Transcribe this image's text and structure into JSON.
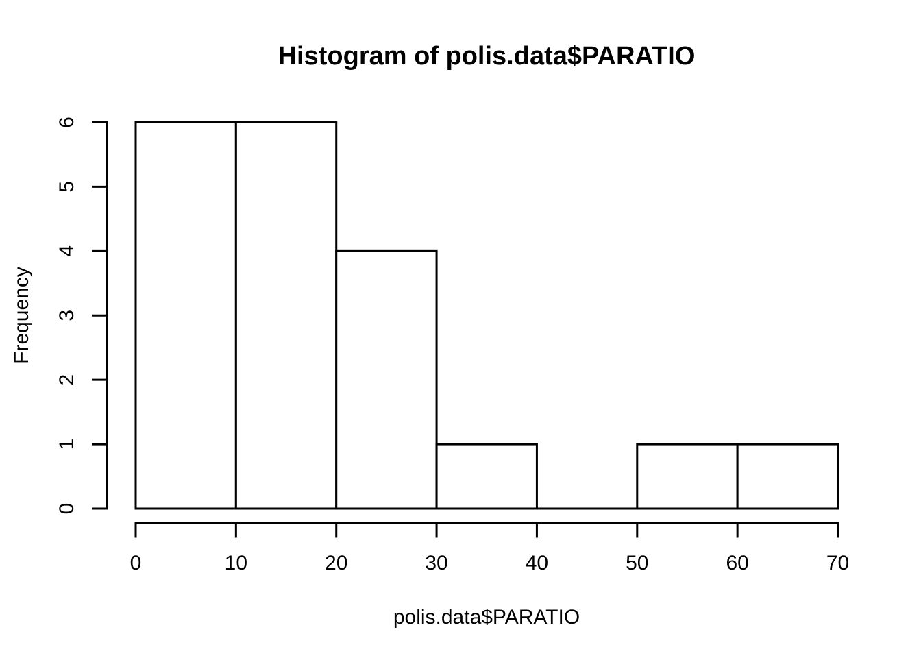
{
  "chart_data": {
    "type": "bar",
    "subtype": "histogram",
    "title": "Histogram of polis.data$PARATIO",
    "xlabel": "polis.data$PARATIO",
    "ylabel": "Frequency",
    "bin_edges": [
      0,
      10,
      20,
      30,
      40,
      50,
      60,
      70
    ],
    "counts": [
      6,
      6,
      4,
      1,
      0,
      1,
      1
    ],
    "x_ticks": [
      0,
      10,
      20,
      30,
      40,
      50,
      60,
      70
    ],
    "y_ticks": [
      0,
      1,
      2,
      3,
      4,
      5,
      6
    ],
    "xlim": [
      0,
      70
    ],
    "ylim": [
      0,
      6
    ],
    "grid": "off",
    "legend": "none",
    "bar_fill": "#ffffff",
    "bar_stroke": "#000000",
    "axis_color": "#000000",
    "text_color": "#000000",
    "background": "#ffffff"
  }
}
